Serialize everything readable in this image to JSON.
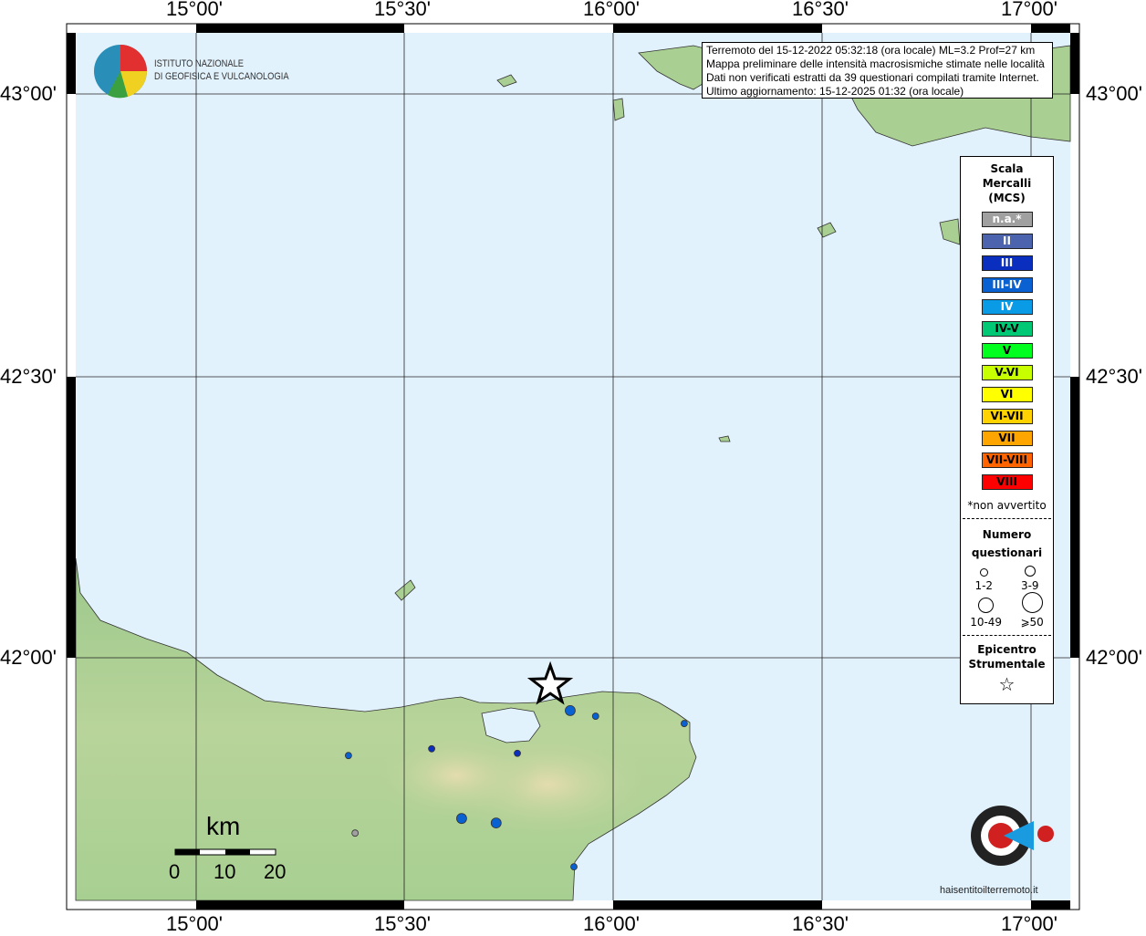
{
  "info": {
    "lines": [
      "Terremoto del 15-12-2022 05:32:18 (ora locale) ML=3.2 Prof=27 km",
      "Mappa preliminare delle intensità macrosismiche stimate nelle località",
      "Dati non verificati estratti da 39 questionari compilati tramite Internet.",
      "Ultimo aggiornamento: 15-12-2025 01:32 (ora locale)"
    ]
  },
  "logo": {
    "line1": "ISTITUTO NAZIONALE",
    "line2": "DI GEOFISICA E VULCANOLOGIA"
  },
  "axes": {
    "lon_labels": [
      "15°00'",
      "15°30'",
      "16°00'",
      "16°30'",
      "17°00'"
    ],
    "lat_labels": [
      "43°00'",
      "42°30'",
      "42°00'"
    ]
  },
  "legend": {
    "title": [
      "Scala",
      "Mercalli",
      "(MCS)"
    ],
    "classes": [
      {
        "label": "n.a.*",
        "color": "#a0a0a0",
        "text": "#ffffff"
      },
      {
        "label": "II",
        "color": "#4c64ae",
        "text": "#ffffff"
      },
      {
        "label": "III",
        "color": "#0a2fbe",
        "text": "#ffffff"
      },
      {
        "label": "III-IV",
        "color": "#0a62d2",
        "text": "#ffffff"
      },
      {
        "label": "IV",
        "color": "#0a9be6",
        "text": "#ffffff"
      },
      {
        "label": "IV-V",
        "color": "#00c874",
        "text": "#000000"
      },
      {
        "label": "V",
        "color": "#00ff1e",
        "text": "#000000"
      },
      {
        "label": "V-VI",
        "color": "#c8ff00",
        "text": "#000000"
      },
      {
        "label": "VI",
        "color": "#ffff00",
        "text": "#000000"
      },
      {
        "label": "VI-VII",
        "color": "#ffd200",
        "text": "#000000"
      },
      {
        "label": "VII",
        "color": "#ffa500",
        "text": "#000000"
      },
      {
        "label": "VII-VIII",
        "color": "#ff6400",
        "text": "#000000"
      },
      {
        "label": "VIII",
        "color": "#ff0000",
        "text": "#000000"
      }
    ],
    "note": "*non avvertito",
    "count_title": [
      "Numero",
      "questionari"
    ],
    "count_classes": [
      "1-2",
      "3-9",
      "10-49",
      "⩾50"
    ],
    "epicenter_title": [
      "Epicentro",
      "Strumentale"
    ]
  },
  "scale_bar": {
    "unit": "km",
    "ticks": [
      "0",
      "10",
      "20"
    ]
  },
  "watermark": "haisentitoilterremoto.it",
  "epicenter": {
    "lon": 15.851,
    "lat": 41.951
  },
  "points": [
    {
      "lon": 15.899,
      "lat": 41.906,
      "intensity": "III-IV",
      "count": "3-9"
    },
    {
      "lon": 15.96,
      "lat": 41.896,
      "intensity": "III-IV",
      "count": "1-2"
    },
    {
      "lon": 16.173,
      "lat": 41.883,
      "intensity": "III-IV",
      "count": "1-2"
    },
    {
      "lon": 15.772,
      "lat": 41.83,
      "intensity": "III",
      "count": "1-2"
    },
    {
      "lon": 15.566,
      "lat": 41.838,
      "intensity": "III",
      "count": "1-2"
    },
    {
      "lon": 15.366,
      "lat": 41.826,
      "intensity": "III-IV",
      "count": "1-2"
    },
    {
      "lon": 15.638,
      "lat": 41.714,
      "intensity": "III-IV",
      "count": "3-9"
    },
    {
      "lon": 15.721,
      "lat": 41.706,
      "intensity": "III-IV",
      "count": "3-9"
    },
    {
      "lon": 15.382,
      "lat": 41.688,
      "intensity": "n.a.*",
      "count": "1-2"
    },
    {
      "lon": 15.908,
      "lat": 41.628,
      "intensity": "III-IV",
      "count": "1-2"
    }
  ]
}
